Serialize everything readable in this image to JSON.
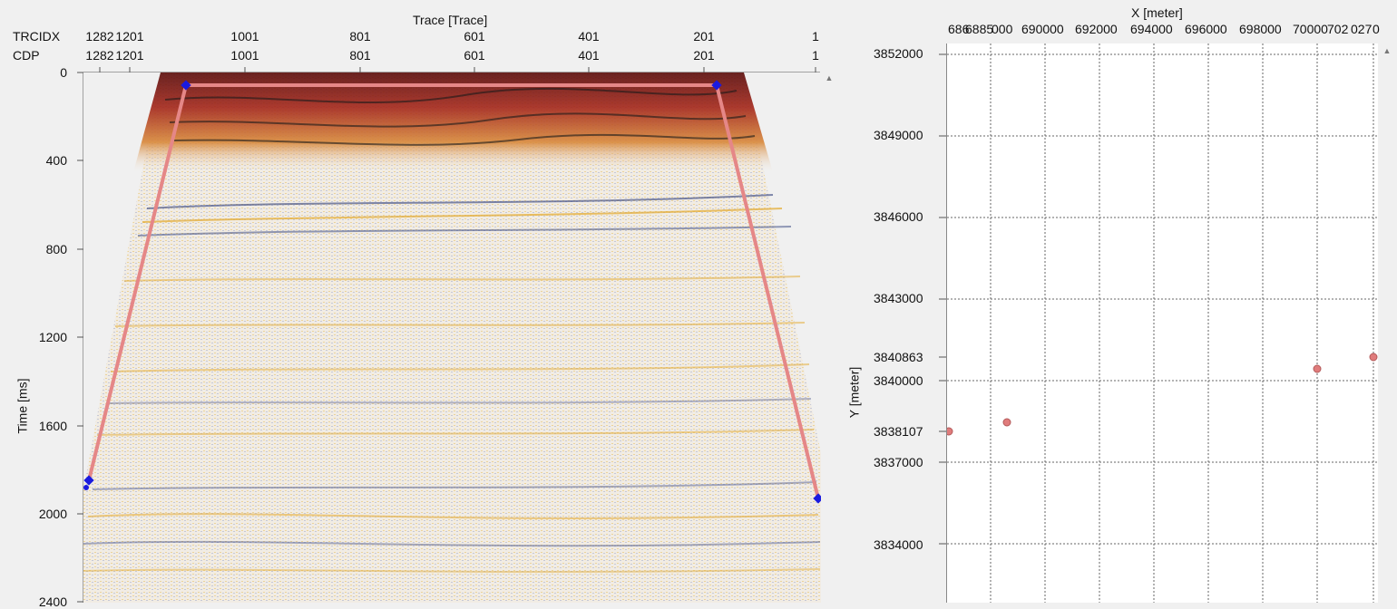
{
  "seismic": {
    "title": "Trace [Trace]",
    "row_labels": [
      "TRCIDX",
      "CDP"
    ],
    "trcidx_ticks": [
      "1282",
      "1201",
      "1001",
      "801",
      "601",
      "401",
      "201",
      "1"
    ],
    "cdp_ticks": [
      "1282",
      "1201",
      "1001",
      "801",
      "601",
      "401",
      "201",
      "1"
    ],
    "y_axis_label": "Time [ms]",
    "y_ticks": [
      "0",
      "400",
      "800",
      "1200",
      "1600",
      "2000",
      "2400"
    ],
    "colors": {
      "overlay": "#e58787",
      "pick": "#1a1adf",
      "background": "#f1ece4"
    }
  },
  "map": {
    "x_axis_label": "X [meter]",
    "x_ticks": [
      "686",
      "6885",
      "000",
      "690000",
      "692000",
      "694000",
      "696000",
      "698000",
      "70000",
      "702",
      "027",
      "0"
    ],
    "y_axis_label": "Y [meter]",
    "y_ticks": [
      "3852000",
      "3849000",
      "3846000",
      "3843000",
      "3840863",
      "3840000",
      "3838107",
      "3837000",
      "3834000"
    ],
    "colors": {
      "point": "#e07c7c",
      "grid": "#555555"
    }
  }
}
